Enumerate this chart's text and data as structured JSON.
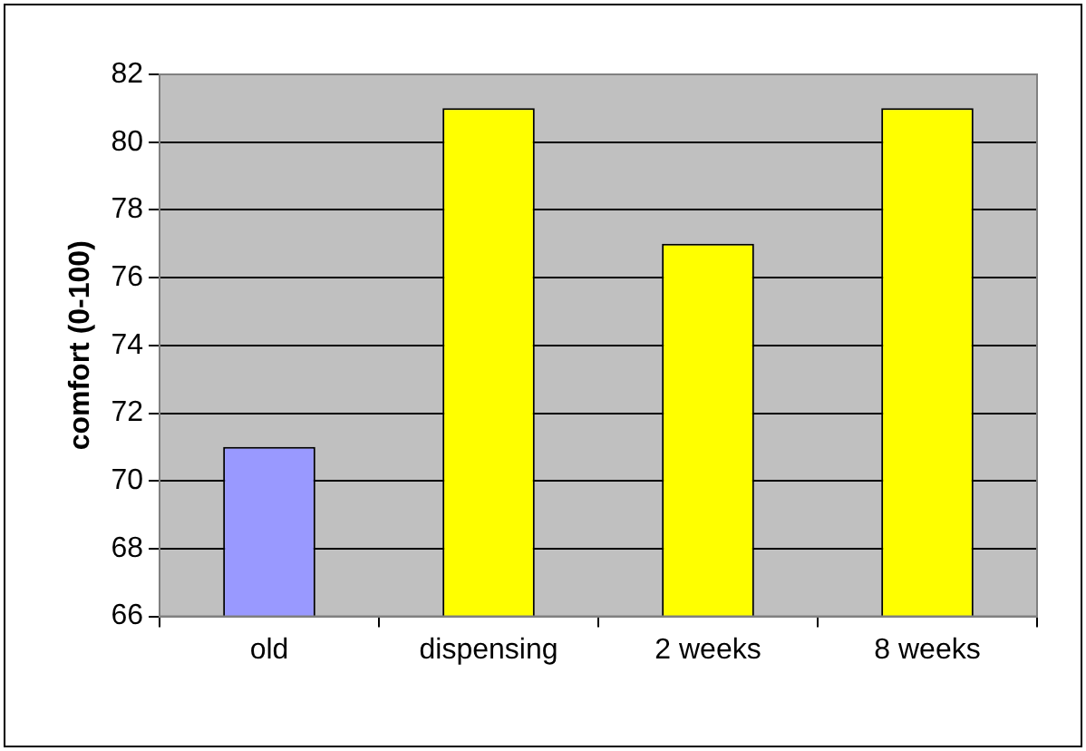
{
  "chart_data": {
    "type": "bar",
    "ylabel": "comfort (0-100)",
    "categories": [
      "old",
      "dispensing",
      "2 weeks",
      "8 weeks"
    ],
    "values": [
      71,
      81,
      77,
      81
    ],
    "colors": [
      "#9999ff",
      "#ffff00",
      "#ffff00",
      "#ffff00"
    ],
    "ylim": [
      66,
      82
    ],
    "yticks": [
      66,
      68,
      70,
      72,
      74,
      76,
      78,
      80,
      82
    ],
    "grid": "y",
    "legend": false
  }
}
